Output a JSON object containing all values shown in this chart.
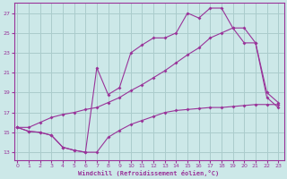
{
  "bg_color": "#cce8e8",
  "grid_color": "#aacccc",
  "line_color": "#993399",
  "xlabel": "Windchill (Refroidissement éolien,°C)",
  "x_ticks": [
    0,
    1,
    2,
    3,
    4,
    5,
    6,
    7,
    8,
    9,
    10,
    11,
    12,
    13,
    14,
    15,
    16,
    17,
    18,
    19,
    20,
    21,
    22,
    23
  ],
  "y_ticks": [
    13,
    15,
    17,
    19,
    21,
    23,
    25,
    27
  ],
  "xlim": [
    -0.3,
    23.5
  ],
  "ylim": [
    12.2,
    28.0
  ],
  "line1_x": [
    0,
    1,
    2,
    3,
    4,
    5,
    6,
    7,
    8,
    9,
    10,
    11,
    12,
    13,
    14,
    15,
    16,
    17,
    18,
    19,
    20,
    21,
    22,
    23
  ],
  "line1_y": [
    15.5,
    15.1,
    15.0,
    14.7,
    13.5,
    13.2,
    13.0,
    13.0,
    14.5,
    15.2,
    15.8,
    16.2,
    16.6,
    17.0,
    17.2,
    17.3,
    17.4,
    17.5,
    17.5,
    17.6,
    17.7,
    17.8,
    17.8,
    17.8
  ],
  "line2_x": [
    0,
    1,
    2,
    3,
    4,
    5,
    6,
    7,
    8,
    9,
    10,
    11,
    12,
    13,
    14,
    15,
    16,
    17,
    18,
    19,
    20,
    21,
    22,
    23
  ],
  "line2_y": [
    15.5,
    15.1,
    15.0,
    14.7,
    13.5,
    13.2,
    13.0,
    21.5,
    18.8,
    19.5,
    23.0,
    23.8,
    24.5,
    24.5,
    25.0,
    27.0,
    26.5,
    27.5,
    27.5,
    25.5,
    24.0,
    24.0,
    18.5,
    17.5
  ],
  "line3_x": [
    0,
    1,
    2,
    3,
    4,
    5,
    6,
    7,
    8,
    9,
    10,
    11,
    12,
    13,
    14,
    15,
    16,
    17,
    18,
    19,
    20,
    21,
    22,
    23
  ],
  "line3_y": [
    15.5,
    15.5,
    16.0,
    16.5,
    16.8,
    17.0,
    17.3,
    17.5,
    18.0,
    18.5,
    19.2,
    19.8,
    20.5,
    21.2,
    22.0,
    22.8,
    23.5,
    24.5,
    25.0,
    25.5,
    25.5,
    24.0,
    19.0,
    18.0
  ]
}
